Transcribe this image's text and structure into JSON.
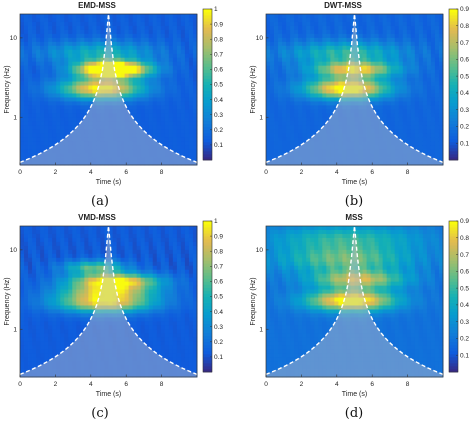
{
  "chart_data": [
    {
      "type": "heatmap",
      "title": "EMD-MSS",
      "caption": "(a)",
      "xlabel": "Time (s)",
      "ylabel": "Frequency (Hz)",
      "xlim": [
        0,
        10
      ],
      "ylim": [
        0.25,
        20
      ],
      "yscale": "log",
      "xticks": [
        "0",
        "2",
        "4",
        "6",
        "8"
      ],
      "yticks": [
        "10",
        "1"
      ],
      "colorbar_ticks": [
        "0.1",
        "0.2",
        "0.3",
        "0.4",
        "0.5",
        "0.6",
        "0.7",
        "0.8",
        "0.9",
        "1"
      ],
      "colorbar_range": [
        0,
        1
      ],
      "blobs": [
        {
          "t": 4.6,
          "f": 2.3,
          "amp": 0.9,
          "st": 1.6,
          "sf": 0.09
        },
        {
          "t": 5.6,
          "f": 4.0,
          "amp": 0.95,
          "st": 1.3,
          "sf": 0.07
        },
        {
          "t": 4.6,
          "f": 4.0,
          "amp": 0.55,
          "st": 1.2,
          "sf": 0.07
        },
        {
          "t": 4.5,
          "f": 6.5,
          "amp": 0.35,
          "st": 2.2,
          "sf": 0.1
        }
      ],
      "background": 0.13
    },
    {
      "type": "heatmap",
      "title": "DWT-MSS",
      "caption": "(b)",
      "xlabel": "Time (s)",
      "ylabel": "Frequency (Hz)",
      "xlim": [
        0,
        10
      ],
      "ylim": [
        0.25,
        20
      ],
      "yscale": "log",
      "xticks": [
        "0",
        "2",
        "4",
        "6",
        "8"
      ],
      "yticks": [
        "10",
        "1"
      ],
      "colorbar_ticks": [
        "0.1",
        "0.2",
        "0.3",
        "0.4",
        "0.5",
        "0.6",
        "0.7",
        "0.8",
        "0.9"
      ],
      "colorbar_range": [
        0,
        0.9
      ],
      "blobs": [
        {
          "t": 4.6,
          "f": 2.3,
          "amp": 0.85,
          "st": 1.6,
          "sf": 0.09
        },
        {
          "t": 5.0,
          "f": 4.0,
          "amp": 0.7,
          "st": 1.6,
          "sf": 0.07
        },
        {
          "t": 4.5,
          "f": 6.5,
          "amp": 0.35,
          "st": 2.3,
          "sf": 0.1
        }
      ],
      "background": 0.14
    },
    {
      "type": "heatmap",
      "title": "VMD-MSS",
      "caption": "(c)",
      "xlabel": "Time (s)",
      "ylabel": "Frequency (Hz)",
      "xlim": [
        0,
        10
      ],
      "ylim": [
        0.25,
        20
      ],
      "yscale": "log",
      "xticks": [
        "0",
        "2",
        "4",
        "6",
        "8"
      ],
      "yticks": [
        "10",
        "1"
      ],
      "colorbar_ticks": [
        "0.1",
        "0.2",
        "0.3",
        "0.4",
        "0.5",
        "0.6",
        "0.7",
        "0.8",
        "0.9",
        "1"
      ],
      "colorbar_range": [
        0,
        1
      ],
      "blobs": [
        {
          "t": 4.8,
          "f": 2.2,
          "amp": 0.85,
          "st": 1.9,
          "sf": 0.09
        },
        {
          "t": 5.3,
          "f": 4.0,
          "amp": 0.95,
          "st": 1.7,
          "sf": 0.07
        },
        {
          "t": 4.2,
          "f": 6.0,
          "amp": 0.5,
          "st": 1.2,
          "sf": 0.06
        },
        {
          "t": 5.0,
          "f": 3.0,
          "amp": 0.45,
          "st": 1.8,
          "sf": 0.06
        }
      ],
      "background": 0.12
    },
    {
      "type": "heatmap",
      "title": "MSS",
      "caption": "(d)",
      "xlabel": "Time (s)",
      "ylabel": "Frequency (Hz)",
      "xlim": [
        0,
        10
      ],
      "ylim": [
        0.25,
        20
      ],
      "yscale": "log",
      "xticks": [
        "0",
        "2",
        "4",
        "6",
        "8"
      ],
      "yticks": [
        "10",
        "1"
      ],
      "colorbar_ticks": [
        "0.1",
        "0.2",
        "0.3",
        "0.4",
        "0.5",
        "0.6",
        "0.7",
        "0.8",
        "0.9"
      ],
      "colorbar_range": [
        0,
        0.9
      ],
      "blobs": [
        {
          "t": 4.8,
          "f": 2.3,
          "amp": 0.8,
          "st": 1.7,
          "sf": 0.09
        },
        {
          "t": 5.2,
          "f": 4.2,
          "amp": 0.55,
          "st": 1.8,
          "sf": 0.08
        },
        {
          "t": 4.5,
          "f": 7.5,
          "amp": 0.4,
          "st": 2.6,
          "sf": 0.12
        },
        {
          "t": 4.5,
          "f": 14.0,
          "amp": 0.3,
          "st": 3.0,
          "sf": 0.12
        }
      ],
      "background": 0.18
    }
  ]
}
